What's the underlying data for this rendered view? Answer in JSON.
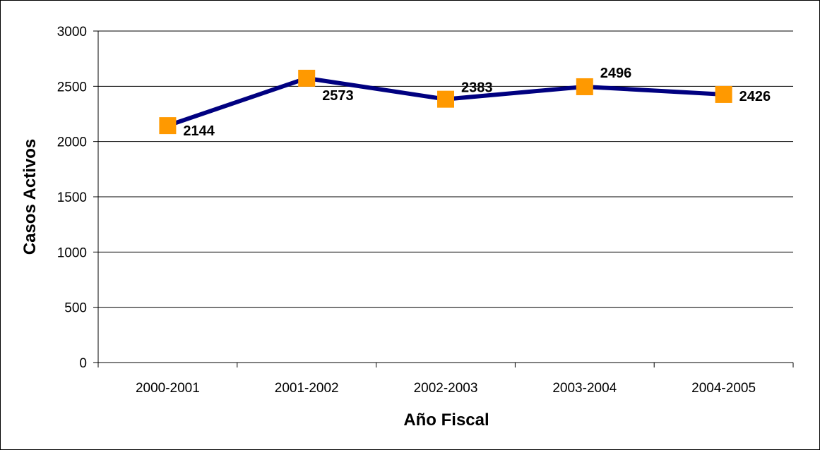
{
  "chart_data": {
    "type": "line",
    "categories": [
      "2000-2001",
      "2001-2002",
      "2002-2003",
      "2003-2004",
      "2004-2005"
    ],
    "series": [
      {
        "values": [
          2144,
          2573,
          2383,
          2496,
          2426
        ]
      }
    ],
    "data_labels": [
      "2144",
      "2573",
      "2383",
      "2496",
      "2426"
    ],
    "xlabel": "Año Fiscal",
    "ylabel": "Casos Activos",
    "ylim": [
      0,
      3000
    ],
    "yticks": [
      0,
      500,
      1000,
      1500,
      2000,
      2500,
      3000
    ],
    "ytick_labels": [
      "0",
      "500",
      "1000",
      "1500",
      "2000",
      "2500",
      "3000"
    ],
    "grid": true,
    "legend": "none",
    "colors": {
      "line": "#000080",
      "marker": "#FF9900",
      "grid": "#000000"
    }
  }
}
